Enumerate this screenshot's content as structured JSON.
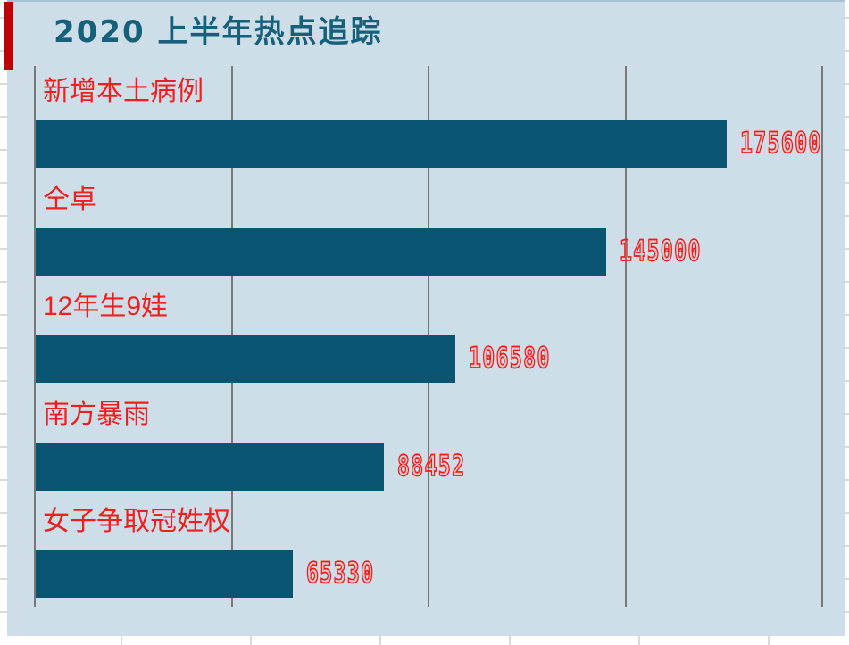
{
  "chart_data": {
    "type": "bar",
    "orientation": "horizontal",
    "title": "2020 上半年热点追踪",
    "categories": [
      "新增本土病例",
      "仝卓",
      "12年生9娃",
      "南方暴雨",
      "女子争取冠姓权"
    ],
    "values": [
      175600,
      145000,
      106580,
      88452,
      65330
    ],
    "data_labels": [
      "175600",
      "145000",
      "106580",
      "88452",
      "65330"
    ],
    "xlabel": "",
    "ylabel": "",
    "xlim": [
      0,
      200000
    ],
    "x_gridline_step": 50000,
    "grid": true,
    "legend": "none",
    "axis_tick_labels_visible": false
  },
  "colors": {
    "chart_background": "#cddee9",
    "bar_fill": "#095470",
    "title_text": "#16607c",
    "category_label": "#f21d1d",
    "data_label_outline": "#ff1414",
    "accent_block": "#c00000",
    "gridline": "#787878",
    "sheet_background": "#ffffff",
    "sheet_gridline": "#dadada"
  }
}
